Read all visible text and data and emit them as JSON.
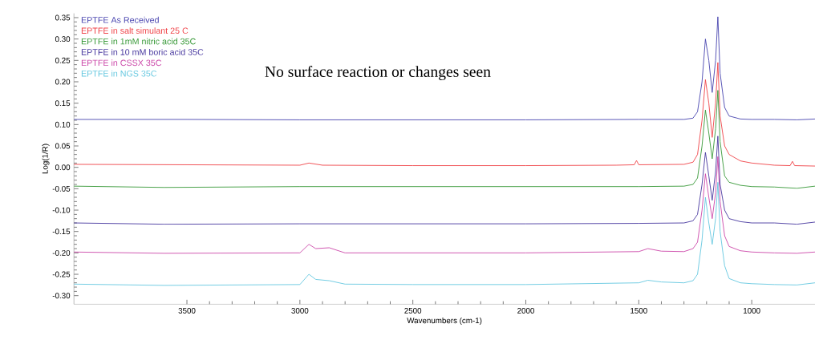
{
  "chart_data": {
    "type": "line",
    "xlabel": "Wavenumbers (cm-1)",
    "ylabel": "Log(1/R)",
    "annotations": [
      "No surface reaction or changes seen"
    ],
    "xlim": [
      4000,
      720
    ],
    "xticks": [
      3500,
      3000,
      2500,
      2000,
      1500,
      1000
    ],
    "ylim": [
      -0.32,
      0.36
    ],
    "yticks": [
      {
        "value": -0.3,
        "label": "-0.30"
      },
      {
        "value": -0.25,
        "label": "-0.25"
      },
      {
        "value": -0.2,
        "label": "-0.20"
      },
      {
        "value": -0.15,
        "label": "-0.15"
      },
      {
        "value": -0.1,
        "label": "-0.10"
      },
      {
        "value": -0.05,
        "label": "-0.05"
      },
      {
        "value": 0,
        "label": "0.00"
      },
      {
        "value": 0.05,
        "label": "0.05"
      },
      {
        "value": 0.1,
        "label": "0.10"
      },
      {
        "value": 0.15,
        "label": "0.15"
      },
      {
        "value": 0.2,
        "label": "0.20"
      },
      {
        "value": 0.25,
        "label": "0.25"
      },
      {
        "value": 0.3,
        "label": "0.30"
      },
      {
        "value": 0.35,
        "label": "0.35"
      }
    ],
    "grid": false,
    "legend": "top left",
    "marker": "none",
    "line_style": "solid",
    "series": [
      {
        "name": "EPTFE  As Received",
        "color": "#4a46b0",
        "x": [
          4000,
          3500,
          3000,
          2500,
          2000,
          1500,
          1300,
          1260,
          1240,
          1220,
          1205,
          1190,
          1175,
          1160,
          1150,
          1140,
          1120,
          1100,
          1050,
          1000,
          900,
          800,
          720
        ],
        "values": [
          0.112,
          0.112,
          0.111,
          0.111,
          0.111,
          0.112,
          0.112,
          0.115,
          0.13,
          0.2,
          0.3,
          0.25,
          0.175,
          0.25,
          0.352,
          0.22,
          0.14,
          0.12,
          0.113,
          0.112,
          0.112,
          0.111,
          0.113
        ]
      },
      {
        "name": "EPTFE in salt simulant 25 C",
        "color": "#f0454a",
        "x": [
          4000,
          3000,
          2960,
          2900,
          2500,
          2000,
          1600,
          1520,
          1510,
          1500,
          1300,
          1260,
          1240,
          1220,
          1205,
          1190,
          1175,
          1160,
          1150,
          1140,
          1120,
          1100,
          1050,
          1000,
          900,
          830,
          820,
          810,
          720
        ],
        "values": [
          0.007,
          0.005,
          0.01,
          0.005,
          0.004,
          0.004,
          0.005,
          0.006,
          0.016,
          0.006,
          0.007,
          0.012,
          0.03,
          0.11,
          0.205,
          0.15,
          0.07,
          0.15,
          0.245,
          0.12,
          0.05,
          0.03,
          0.015,
          0.01,
          0.005,
          0.004,
          0.014,
          0.004,
          0.003
        ]
      },
      {
        "name": "EPTFE in 1mM nitric acid 35C",
        "color": "#3a9a3a",
        "x": [
          4000,
          3600,
          3000,
          2500,
          2000,
          1500,
          1300,
          1260,
          1240,
          1220,
          1205,
          1190,
          1175,
          1160,
          1150,
          1140,
          1120,
          1100,
          1050,
          1000,
          900,
          800,
          720
        ],
        "values": [
          -0.044,
          -0.047,
          -0.045,
          -0.045,
          -0.045,
          -0.045,
          -0.044,
          -0.04,
          -0.025,
          0.05,
          0.134,
          0.08,
          0.02,
          0.09,
          0.18,
          0.06,
          -0.02,
          -0.035,
          -0.042,
          -0.045,
          -0.046,
          -0.049,
          -0.044
        ]
      },
      {
        "name": "EPTFE in 10 mM boric acid 35C",
        "color": "#4a3aa0",
        "x": [
          4000,
          3600,
          3000,
          2500,
          2000,
          1500,
          1300,
          1260,
          1240,
          1220,
          1205,
          1190,
          1175,
          1160,
          1150,
          1140,
          1120,
          1100,
          1050,
          1000,
          900,
          800,
          720
        ],
        "values": [
          -0.13,
          -0.133,
          -0.132,
          -0.132,
          -0.132,
          -0.131,
          -0.13,
          -0.125,
          -0.11,
          -0.04,
          0.035,
          -0.02,
          -0.077,
          -0.01,
          0.073,
          -0.04,
          -0.1,
          -0.12,
          -0.127,
          -0.13,
          -0.13,
          -0.133,
          -0.128
        ]
      },
      {
        "name": "EPTFE in CSSX 35C",
        "color": "#cc4aaa",
        "x": [
          4000,
          3600,
          3000,
          2960,
          2930,
          2870,
          2800,
          2500,
          2000,
          1500,
          1460,
          1400,
          1300,
          1260,
          1240,
          1220,
          1205,
          1190,
          1175,
          1160,
          1150,
          1140,
          1120,
          1100,
          1050,
          1000,
          900,
          800,
          720
        ],
        "values": [
          -0.198,
          -0.201,
          -0.2,
          -0.18,
          -0.19,
          -0.188,
          -0.2,
          -0.2,
          -0.2,
          -0.197,
          -0.19,
          -0.196,
          -0.197,
          -0.19,
          -0.175,
          -0.1,
          -0.015,
          -0.07,
          -0.12,
          -0.06,
          0.025,
          -0.08,
          -0.16,
          -0.185,
          -0.195,
          -0.198,
          -0.2,
          -0.201,
          -0.198
        ]
      },
      {
        "name": "EPTFE in NGS 35C",
        "color": "#66c8e0",
        "x": [
          4000,
          3600,
          3000,
          2960,
          2930,
          2870,
          2800,
          2500,
          2000,
          1500,
          1460,
          1400,
          1300,
          1260,
          1240,
          1220,
          1205,
          1190,
          1175,
          1160,
          1150,
          1140,
          1120,
          1100,
          1050,
          1000,
          900,
          800,
          720
        ],
        "values": [
          -0.273,
          -0.276,
          -0.274,
          -0.25,
          -0.262,
          -0.265,
          -0.273,
          -0.274,
          -0.274,
          -0.27,
          -0.264,
          -0.268,
          -0.27,
          -0.265,
          -0.25,
          -0.17,
          -0.07,
          -0.13,
          -0.18,
          -0.12,
          -0.035,
          -0.15,
          -0.23,
          -0.26,
          -0.27,
          -0.272,
          -0.274,
          -0.275,
          -0.27
        ]
      }
    ]
  }
}
